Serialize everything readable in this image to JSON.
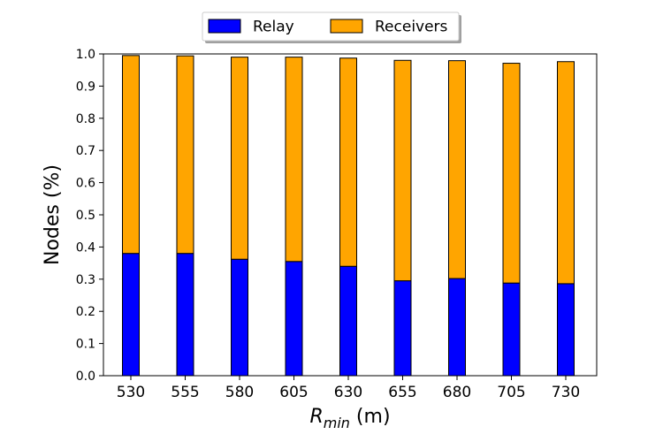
{
  "chart_data": {
    "type": "bar",
    "stacked": true,
    "categories": [
      "530",
      "555",
      "580",
      "605",
      "630",
      "655",
      "680",
      "705",
      "730"
    ],
    "series": [
      {
        "name": "Relay",
        "color": "#0000ff",
        "values": [
          0.38,
          0.38,
          0.362,
          0.355,
          0.34,
          0.295,
          0.302,
          0.288,
          0.286
        ]
      },
      {
        "name": "Receivers",
        "color": "#ffa500",
        "values": [
          0.615,
          0.614,
          0.628,
          0.635,
          0.647,
          0.685,
          0.677,
          0.683,
          0.69
        ]
      }
    ],
    "xlabel": "R_min (m)",
    "xlabel_main": "R",
    "xlabel_sub": "min",
    "xlabel_unit": " (m)",
    "ylabel": "Nodes (%)",
    "ylim": [
      0,
      1.0
    ],
    "yticks": [
      "0.0",
      "0.1",
      "0.2",
      "0.3",
      "0.4",
      "0.5",
      "0.6",
      "0.7",
      "0.8",
      "0.9",
      "1.0"
    ],
    "legend_position": "top-center",
    "grid": false
  }
}
